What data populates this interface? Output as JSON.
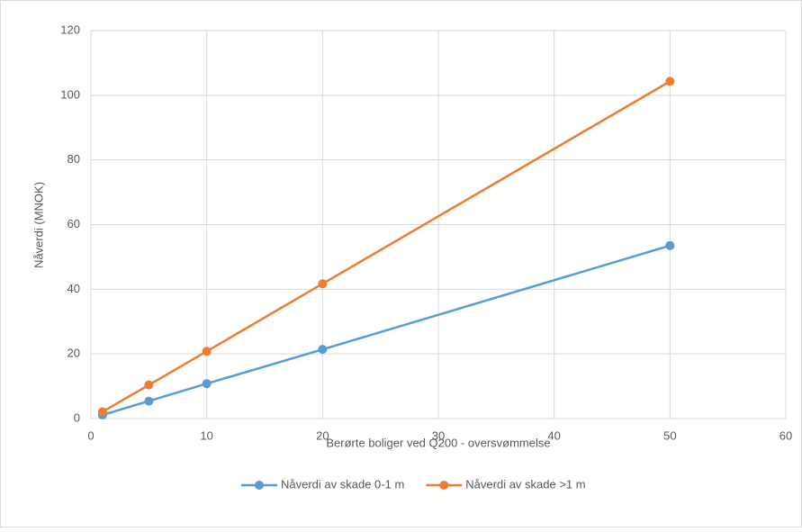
{
  "chart_data": {
    "type": "line",
    "x_label": "Berørte boliger ved Q200 - oversvømmelse",
    "y_label": "Nåverdi (MNOK)",
    "x": [
      1,
      5,
      10,
      20,
      50
    ],
    "series": [
      {
        "name": "Nåverdi av skade 0-1 m",
        "color": "#5b9bd5",
        "values": [
          1.1,
          5.4,
          10.8,
          21.4,
          53.5
        ]
      },
      {
        "name": "Nåverdi av skade >1 m",
        "color": "#ed7d31",
        "values": [
          2.1,
          10.4,
          20.8,
          41.7,
          104.3
        ]
      }
    ],
    "xlim": [
      0,
      60
    ],
    "xticks": [
      0,
      10,
      20,
      30,
      40,
      50,
      60
    ],
    "ylim": [
      0,
      120
    ],
    "yticks": [
      0,
      20,
      40,
      60,
      80,
      100,
      120
    ],
    "grid": true,
    "legend": "bottom"
  }
}
